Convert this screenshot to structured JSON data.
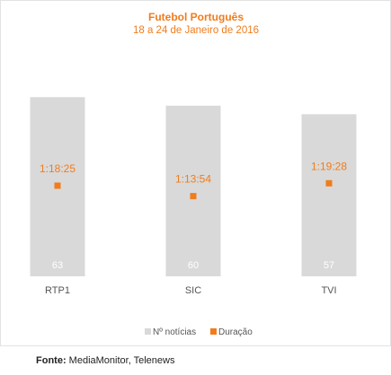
{
  "chart_data": {
    "type": "bar",
    "title": "Futebol Português",
    "subtitle": "18 a 24 de Janeiro de 2016",
    "categories": [
      "RTP1",
      "SIC",
      "TVI"
    ],
    "series": [
      {
        "name": "Nº notícias",
        "type": "bar",
        "values": [
          63,
          60,
          57
        ],
        "color": "#d9d9d9"
      },
      {
        "name": "Duração",
        "type": "point",
        "values": [
          "1:18:25",
          "1:13:54",
          "1:19:28"
        ],
        "color": "#f07c1c"
      }
    ],
    "legend": "bottom"
  },
  "source": {
    "label": "Fonte:",
    "text": "MediaMonitor, Telenews"
  }
}
